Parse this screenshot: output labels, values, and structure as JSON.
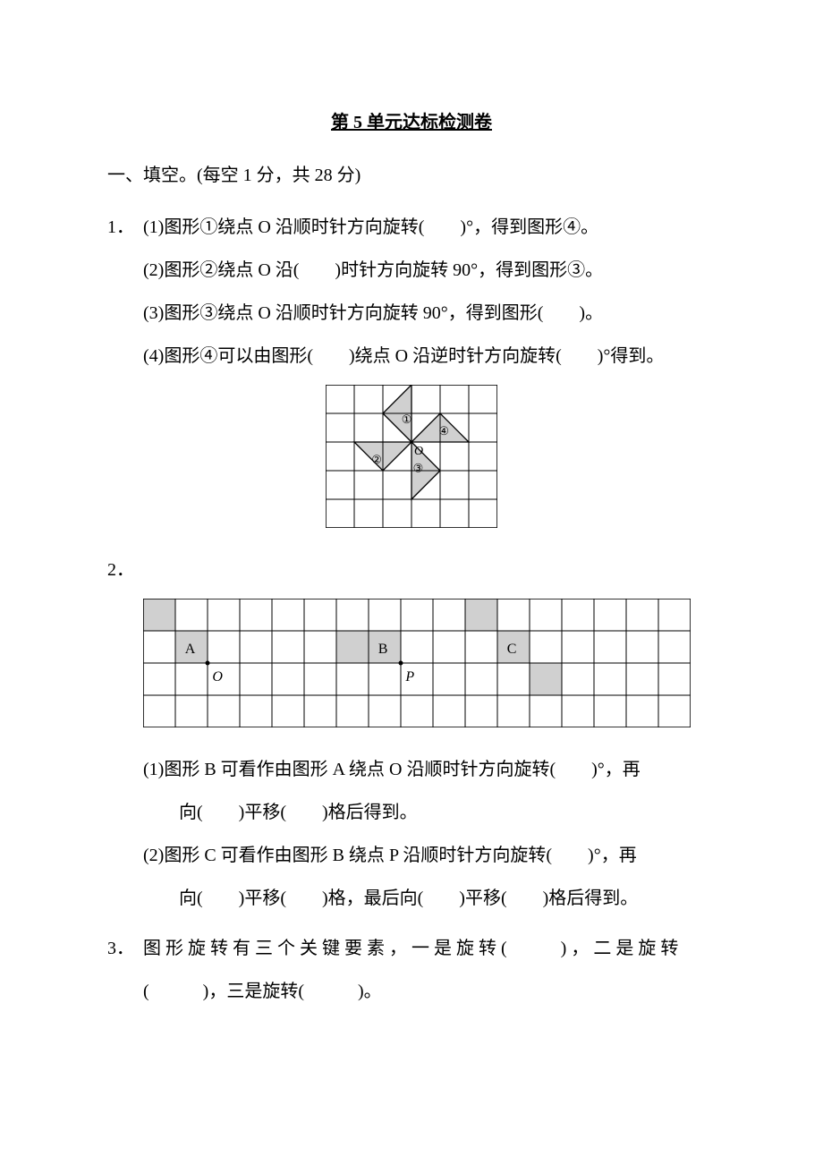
{
  "title": "第 5 单元达标检测卷",
  "section1": {
    "heading": "一、填空。(每空 1 分，共 28 分)",
    "q1": {
      "num": "1．",
      "p1": "(1)图形①绕点 O 沿顺时针方向旋转(　　)°，得到图形④。",
      "p2": "(2)图形②绕点 O 沿(　　)时针方向旋转 90°，得到图形③。",
      "p3": "(3)图形③绕点 O 沿顺时针方向旋转 90°，得到图形(　　)。",
      "p4": "(4)图形④可以由图形(　　)绕点 O 沿逆时针方向旋转(　　)°得到。"
    },
    "q2": {
      "num": "2．",
      "p1a": "(1)图形 B 可看作由图形 A 绕点 O 沿顺时针方向旋转(　　)°，再",
      "p1b": "向(　　)平移(　　)格后得到。",
      "p2a": "(2)图形 C 可看作由图形 B 绕点 P 沿顺时针方向旋转(　　)°，再",
      "p2b": "向(　　)平移(　　)格，最后向(　　)平移(　　)格后得到。"
    },
    "q3": {
      "num": "3．",
      "line1": "图 形 旋 转 有 三 个 关 键 要 素 ， 一 是 旋 转 (　　　) ， 二 是 旋 转",
      "line2": "(　　　)，三是旋转(　　　)。"
    }
  },
  "fig1": {
    "type": "diagram",
    "cols": 6,
    "rows": 5,
    "cell": 32,
    "stroke": "#000000",
    "fill": "#d0d0d0",
    "bg": "#ffffff",
    "labels": {
      "center": "O",
      "t1": "①",
      "t2": "②",
      "t3": "③",
      "t4": "④"
    },
    "centerCell": [
      3,
      2
    ],
    "triangles": [
      {
        "id": "t1",
        "pts": [
          [
            3,
            2
          ],
          [
            2,
            1
          ],
          [
            3,
            0
          ]
        ],
        "labelAt": [
          2.65,
          1.35
        ]
      },
      {
        "id": "t4",
        "pts": [
          [
            3,
            2
          ],
          [
            4,
            1
          ],
          [
            5,
            2
          ]
        ],
        "labelAt": [
          3.95,
          1.75
        ]
      },
      {
        "id": "t2",
        "pts": [
          [
            3,
            2
          ],
          [
            2,
            3
          ],
          [
            1,
            2
          ]
        ],
        "labelAt": [
          1.6,
          2.75
        ]
      },
      {
        "id": "t3",
        "pts": [
          [
            3,
            2
          ],
          [
            4,
            3
          ],
          [
            3,
            4
          ]
        ],
        "labelAt": [
          3.05,
          3.05
        ]
      }
    ],
    "label_fontsize": 13
  },
  "fig2": {
    "type": "diagram",
    "cols": 17,
    "rows": 4,
    "cell": 36,
    "stroke": "#000000",
    "fill": "#d0d0d0",
    "bg": "#ffffff",
    "shapes": {
      "A": {
        "cells": [
          [
            0,
            0
          ],
          [
            1,
            1
          ]
        ],
        "label": "A",
        "labelAt": [
          1.3,
          1.7
        ],
        "point": {
          "name": "O",
          "at": [
            2,
            2
          ],
          "labelAt": [
            2.15,
            2.55
          ]
        }
      },
      "B": {
        "cells": [
          [
            6,
            1
          ],
          [
            7,
            1
          ]
        ],
        "label": "B",
        "labelAt": [
          7.3,
          1.7
        ],
        "point": {
          "name": "P",
          "at": [
            8,
            2
          ],
          "labelAt": [
            8.15,
            2.55
          ]
        }
      },
      "C": {
        "cells": [
          [
            10,
            0
          ],
          [
            11,
            1
          ],
          [
            12,
            2
          ]
        ],
        "label": "C",
        "labelAt": [
          11.3,
          1.7
        ]
      }
    },
    "label_fontsize": 16,
    "point_label_fontsize": 16
  }
}
